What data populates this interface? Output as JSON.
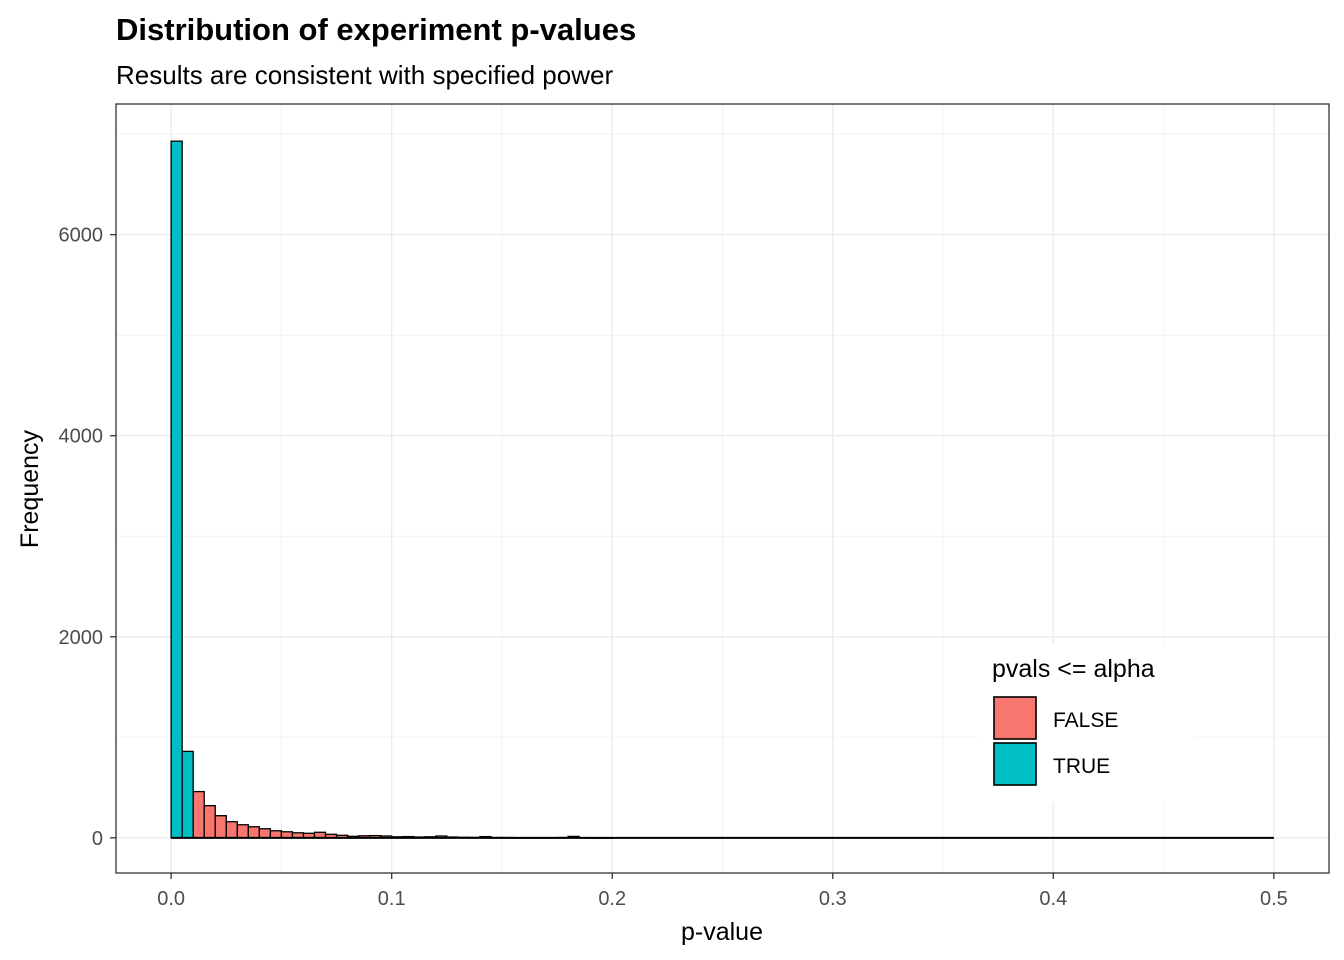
{
  "chart_data": {
    "type": "bar",
    "title": "Distribution of experiment p-values",
    "subtitle": "Results are consistent with specified power",
    "xlabel": "p-value",
    "ylabel": "Frequency",
    "xlim": [
      -0.025,
      0.525
    ],
    "ylim": [
      -350,
      7300
    ],
    "x_ticks": [
      {
        "value": 0.0,
        "label": "0.0"
      },
      {
        "value": 0.1,
        "label": "0.1"
      },
      {
        "value": 0.2,
        "label": "0.2"
      },
      {
        "value": 0.3,
        "label": "0.3"
      },
      {
        "value": 0.4,
        "label": "0.4"
      },
      {
        "value": 0.5,
        "label": "0.5"
      }
    ],
    "y_ticks": [
      {
        "value": 0,
        "label": "0"
      },
      {
        "value": 2000,
        "label": "2000"
      },
      {
        "value": 4000,
        "label": "4000"
      },
      {
        "value": 6000,
        "label": "6000"
      }
    ],
    "grid": true,
    "bin_width": 0.005,
    "legend": {
      "title": "pvals <= alpha",
      "position": "bottom-right",
      "items": [
        {
          "label": "FALSE",
          "color": "#F8766D"
        },
        {
          "label": "TRUE",
          "color": "#00BFC4"
        }
      ]
    },
    "series": [
      {
        "name": "TRUE",
        "color": "#00BFC4",
        "bins": [
          {
            "x0": 0.0,
            "x1": 0.005,
            "y": 6930
          },
          {
            "x0": 0.005,
            "x1": 0.01,
            "y": 860
          }
        ]
      },
      {
        "name": "FALSE",
        "color": "#F8766D",
        "bins": [
          {
            "x0": 0.01,
            "x1": 0.015,
            "y": 460
          },
          {
            "x0": 0.015,
            "x1": 0.02,
            "y": 320
          },
          {
            "x0": 0.02,
            "x1": 0.025,
            "y": 220
          },
          {
            "x0": 0.025,
            "x1": 0.03,
            "y": 160
          },
          {
            "x0": 0.03,
            "x1": 0.035,
            "y": 130
          },
          {
            "x0": 0.035,
            "x1": 0.04,
            "y": 110
          },
          {
            "x0": 0.04,
            "x1": 0.045,
            "y": 90
          },
          {
            "x0": 0.045,
            "x1": 0.05,
            "y": 70
          },
          {
            "x0": 0.05,
            "x1": 0.055,
            "y": 60
          },
          {
            "x0": 0.055,
            "x1": 0.06,
            "y": 50
          },
          {
            "x0": 0.06,
            "x1": 0.065,
            "y": 45
          },
          {
            "x0": 0.065,
            "x1": 0.07,
            "y": 55
          },
          {
            "x0": 0.07,
            "x1": 0.075,
            "y": 35
          },
          {
            "x0": 0.075,
            "x1": 0.08,
            "y": 25
          },
          {
            "x0": 0.08,
            "x1": 0.085,
            "y": 15
          },
          {
            "x0": 0.085,
            "x1": 0.09,
            "y": 20
          },
          {
            "x0": 0.09,
            "x1": 0.095,
            "y": 22
          },
          {
            "x0": 0.095,
            "x1": 0.1,
            "y": 18
          },
          {
            "x0": 0.1,
            "x1": 0.105,
            "y": 10
          },
          {
            "x0": 0.105,
            "x1": 0.11,
            "y": 12
          },
          {
            "x0": 0.11,
            "x1": 0.115,
            "y": 8
          },
          {
            "x0": 0.115,
            "x1": 0.12,
            "y": 10
          },
          {
            "x0": 0.12,
            "x1": 0.125,
            "y": 18
          },
          {
            "x0": 0.125,
            "x1": 0.13,
            "y": 8
          },
          {
            "x0": 0.13,
            "x1": 0.135,
            "y": 5
          },
          {
            "x0": 0.135,
            "x1": 0.14,
            "y": 4
          },
          {
            "x0": 0.14,
            "x1": 0.145,
            "y": 12
          },
          {
            "x0": 0.145,
            "x1": 0.15,
            "y": 3
          },
          {
            "x0": 0.15,
            "x1": 0.155,
            "y": 3
          },
          {
            "x0": 0.155,
            "x1": 0.16,
            "y": 2
          },
          {
            "x0": 0.16,
            "x1": 0.165,
            "y": 2
          },
          {
            "x0": 0.165,
            "x1": 0.17,
            "y": 2
          },
          {
            "x0": 0.17,
            "x1": 0.175,
            "y": 2
          },
          {
            "x0": 0.175,
            "x1": 0.18,
            "y": 3
          },
          {
            "x0": 0.18,
            "x1": 0.185,
            "y": 14
          },
          {
            "x0": 0.185,
            "x1": 0.19,
            "y": 2
          },
          {
            "x0": 0.19,
            "x1": 0.195,
            "y": 1
          },
          {
            "x0": 0.195,
            "x1": 0.2,
            "y": 1
          }
        ]
      }
    ],
    "baseline_span": [
      0.0,
      0.5
    ]
  }
}
